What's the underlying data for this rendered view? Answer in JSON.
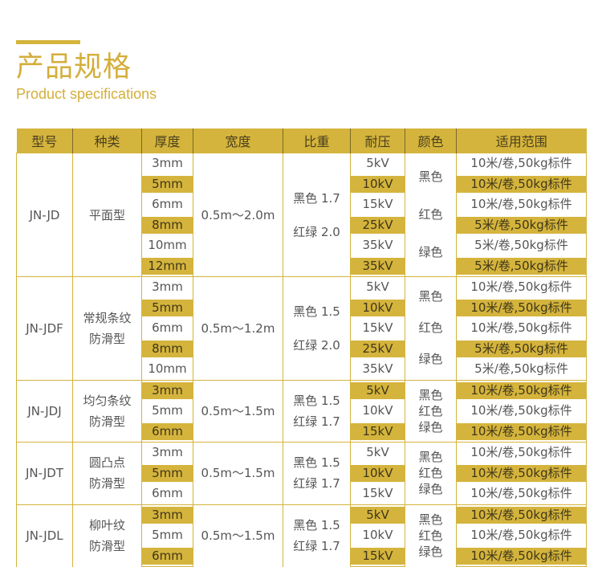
{
  "header": {
    "title": "产品规格",
    "subtitle": "Product specifications"
  },
  "colors": {
    "accent": "#D4B43C"
  },
  "table": {
    "columns": [
      "型号",
      "种类",
      "厚度",
      "宽度",
      "比重",
      "耐压",
      "颜色",
      "适用范围"
    ],
    "groups": [
      {
        "model": "JN-JD",
        "type": [
          "平面型"
        ],
        "width": "0.5m～2.0m",
        "gravity": [
          "黑色 1.7",
          "红绿 2.0"
        ],
        "colors": [
          "黑色",
          "红色",
          "绿色"
        ],
        "color_layout": "spread",
        "rows": [
          {
            "thickness": "3mm",
            "voltage": "5kV",
            "usage": "10米/卷,50kg标件",
            "highlight": false
          },
          {
            "thickness": "5mm",
            "voltage": "10kV",
            "usage": "10米/卷,50kg标件",
            "highlight": true
          },
          {
            "thickness": "6mm",
            "voltage": "15kV",
            "usage": "10米/卷,50kg标件",
            "highlight": false
          },
          {
            "thickness": "8mm",
            "voltage": "25kV",
            "usage": "5米/卷,50kg标件",
            "highlight": true
          },
          {
            "thickness": "10mm",
            "voltage": "35kV",
            "usage": "5米/卷,50kg标件",
            "highlight": false
          },
          {
            "thickness": "12mm",
            "voltage": "35kV",
            "usage": "5米/卷,50kg标件",
            "highlight": true
          }
        ]
      },
      {
        "model": "JN-JDF",
        "type": [
          "常规条纹",
          "防滑型"
        ],
        "width": "0.5m～1.2m",
        "gravity": [
          "黑色 1.5",
          "红绿 2.0"
        ],
        "colors": [
          "黑色",
          "红色",
          "绿色"
        ],
        "color_layout": "spread",
        "rows": [
          {
            "thickness": "3mm",
            "voltage": "5kV",
            "usage": "10米/卷,50kg标件",
            "highlight": false
          },
          {
            "thickness": "5mm",
            "voltage": "10kV",
            "usage": "10米/卷,50kg标件",
            "highlight": true
          },
          {
            "thickness": "6mm",
            "voltage": "15kV",
            "usage": "10米/卷,50kg标件",
            "highlight": false
          },
          {
            "thickness": "8mm",
            "voltage": "25kV",
            "usage": "5米/卷,50kg标件",
            "highlight": true
          },
          {
            "thickness": "10mm",
            "voltage": "35kV",
            "usage": "5米/卷,50kg标件",
            "highlight": false
          }
        ]
      },
      {
        "model": "JN-JDJ",
        "type": [
          "均匀条纹",
          "防滑型"
        ],
        "width": "0.5m～1.5m",
        "gravity": [
          "黑色 1.5",
          "红绿 1.7"
        ],
        "colors": [
          "黑色",
          "红色",
          "绿色"
        ],
        "color_layout": "stack",
        "rows": [
          {
            "thickness": "3mm",
            "voltage": "5kV",
            "usage": "10米/卷,50kg标件",
            "highlight": true
          },
          {
            "thickness": "5mm",
            "voltage": "10kV",
            "usage": "10米/卷,50kg标件",
            "highlight": false
          },
          {
            "thickness": "6mm",
            "voltage": "15kV",
            "usage": "10米/卷,50kg标件",
            "highlight": true
          }
        ]
      },
      {
        "model": "JN-JDT",
        "type": [
          "圆凸点",
          "防滑型"
        ],
        "width": "0.5m～1.5m",
        "gravity": [
          "黑色 1.5",
          "红绿 1.7"
        ],
        "colors": [
          "黑色",
          "红色",
          "绿色"
        ],
        "color_layout": "stack",
        "rows": [
          {
            "thickness": "3mm",
            "voltage": "5kV",
            "usage": "10米/卷,50kg标件",
            "highlight": false
          },
          {
            "thickness": "5mm",
            "voltage": "10kV",
            "usage": "10米/卷,50kg标件",
            "highlight": true
          },
          {
            "thickness": "6mm",
            "voltage": "15kV",
            "usage": "10米/卷,50kg标件",
            "highlight": false
          }
        ]
      },
      {
        "model": "JN-JDL",
        "type": [
          "柳叶纹",
          "防滑型"
        ],
        "width": "0.5m～1.5m",
        "gravity": [
          "黑色 1.5",
          "红绿 1.7"
        ],
        "colors": [
          "黑色",
          "红色",
          "绿色"
        ],
        "color_layout": "stack",
        "rows": [
          {
            "thickness": "3mm",
            "voltage": "5kV",
            "usage": "10米/卷,50kg标件",
            "highlight": true
          },
          {
            "thickness": "5mm",
            "voltage": "10kV",
            "usage": "10米/卷,50kg标件",
            "highlight": false
          },
          {
            "thickness": "6mm",
            "voltage": "15kV",
            "usage": "10米/卷,50kg标件",
            "highlight": true
          }
        ]
      }
    ]
  }
}
